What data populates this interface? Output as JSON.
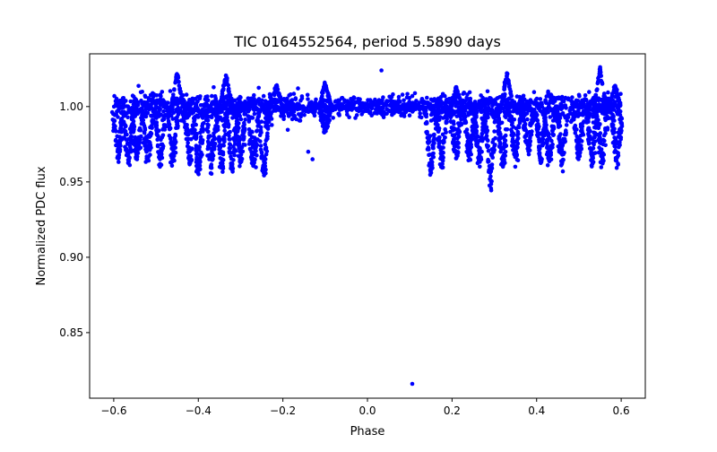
{
  "chart_data": {
    "type": "scatter",
    "title": "TIC 0164552564, period 5.5890 days",
    "xlabel": "Phase",
    "ylabel": "Normalized PDC flux",
    "xlim": [
      -0.657,
      0.657
    ],
    "ylim": [
      0.8065,
      1.035
    ],
    "xticks": [
      -0.6,
      -0.4,
      -0.2,
      0.0,
      0.2,
      0.4,
      0.6
    ],
    "xtick_labels": [
      "−0.6",
      "−0.4",
      "−0.2",
      "0.0",
      "0.2",
      "0.4",
      "0.6"
    ],
    "yticks": [
      0.85,
      0.9,
      0.95,
      1.0
    ],
    "ytick_labels": [
      "0.85",
      "0.90",
      "0.95",
      "1.00"
    ],
    "grid": false,
    "marker_color": "#0000ff",
    "phase_range": [
      -0.6,
      0.6
    ],
    "baseline": {
      "flux": 1.0,
      "scatter": 0.004
    },
    "dips": [
      {
        "phase": -0.59,
        "min_flux": 0.965
      },
      {
        "phase": -0.565,
        "min_flux": 0.963
      },
      {
        "phase": -0.545,
        "min_flux": 0.965
      },
      {
        "phase": -0.52,
        "min_flux": 0.963
      },
      {
        "phase": -0.49,
        "min_flux": 0.962
      },
      {
        "phase": -0.46,
        "min_flux": 0.962
      },
      {
        "phase": -0.42,
        "min_flux": 0.962
      },
      {
        "phase": -0.4,
        "min_flux": 0.955
      },
      {
        "phase": -0.37,
        "min_flux": 0.957
      },
      {
        "phase": -0.345,
        "min_flux": 0.96
      },
      {
        "phase": -0.32,
        "min_flux": 0.958
      },
      {
        "phase": -0.3,
        "min_flux": 0.962
      },
      {
        "phase": -0.27,
        "min_flux": 0.96
      },
      {
        "phase": -0.245,
        "min_flux": 0.956
      },
      {
        "phase": -0.1,
        "min_flux": 0.984
      },
      {
        "phase": 0.15,
        "min_flux": 0.955
      },
      {
        "phase": 0.175,
        "min_flux": 0.96
      },
      {
        "phase": 0.21,
        "min_flux": 0.965
      },
      {
        "phase": 0.24,
        "min_flux": 0.965
      },
      {
        "phase": 0.265,
        "min_flux": 0.962
      },
      {
        "phase": 0.29,
        "min_flux": 0.945
      },
      {
        "phase": 0.32,
        "min_flux": 0.96
      },
      {
        "phase": 0.35,
        "min_flux": 0.965
      },
      {
        "phase": 0.38,
        "min_flux": 0.97
      },
      {
        "phase": 0.41,
        "min_flux": 0.963
      },
      {
        "phase": 0.43,
        "min_flux": 0.963
      },
      {
        "phase": 0.46,
        "min_flux": 0.962
      },
      {
        "phase": 0.5,
        "min_flux": 0.965
      },
      {
        "phase": 0.53,
        "min_flux": 0.962
      },
      {
        "phase": 0.555,
        "min_flux": 0.962
      },
      {
        "phase": 0.59,
        "min_flux": 0.962
      }
    ],
    "humps": [
      {
        "phase": -0.45,
        "max_flux": 1.022
      },
      {
        "phase": -0.335,
        "max_flux": 1.021
      },
      {
        "phase": -0.215,
        "max_flux": 1.014
      },
      {
        "phase": -0.1,
        "max_flux": 1.016
      },
      {
        "phase": 0.21,
        "max_flux": 1.012
      },
      {
        "phase": 0.33,
        "max_flux": 1.022
      },
      {
        "phase": 0.55,
        "max_flux": 1.025
      },
      {
        "phase": 0.585,
        "max_flux": 1.013
      }
    ],
    "outliers": [
      {
        "x": 0.033,
        "y": 1.024
      },
      {
        "x": 0.106,
        "y": 0.816
      },
      {
        "x": -0.14,
        "y": 0.97
      },
      {
        "x": -0.13,
        "y": 0.965
      }
    ]
  }
}
